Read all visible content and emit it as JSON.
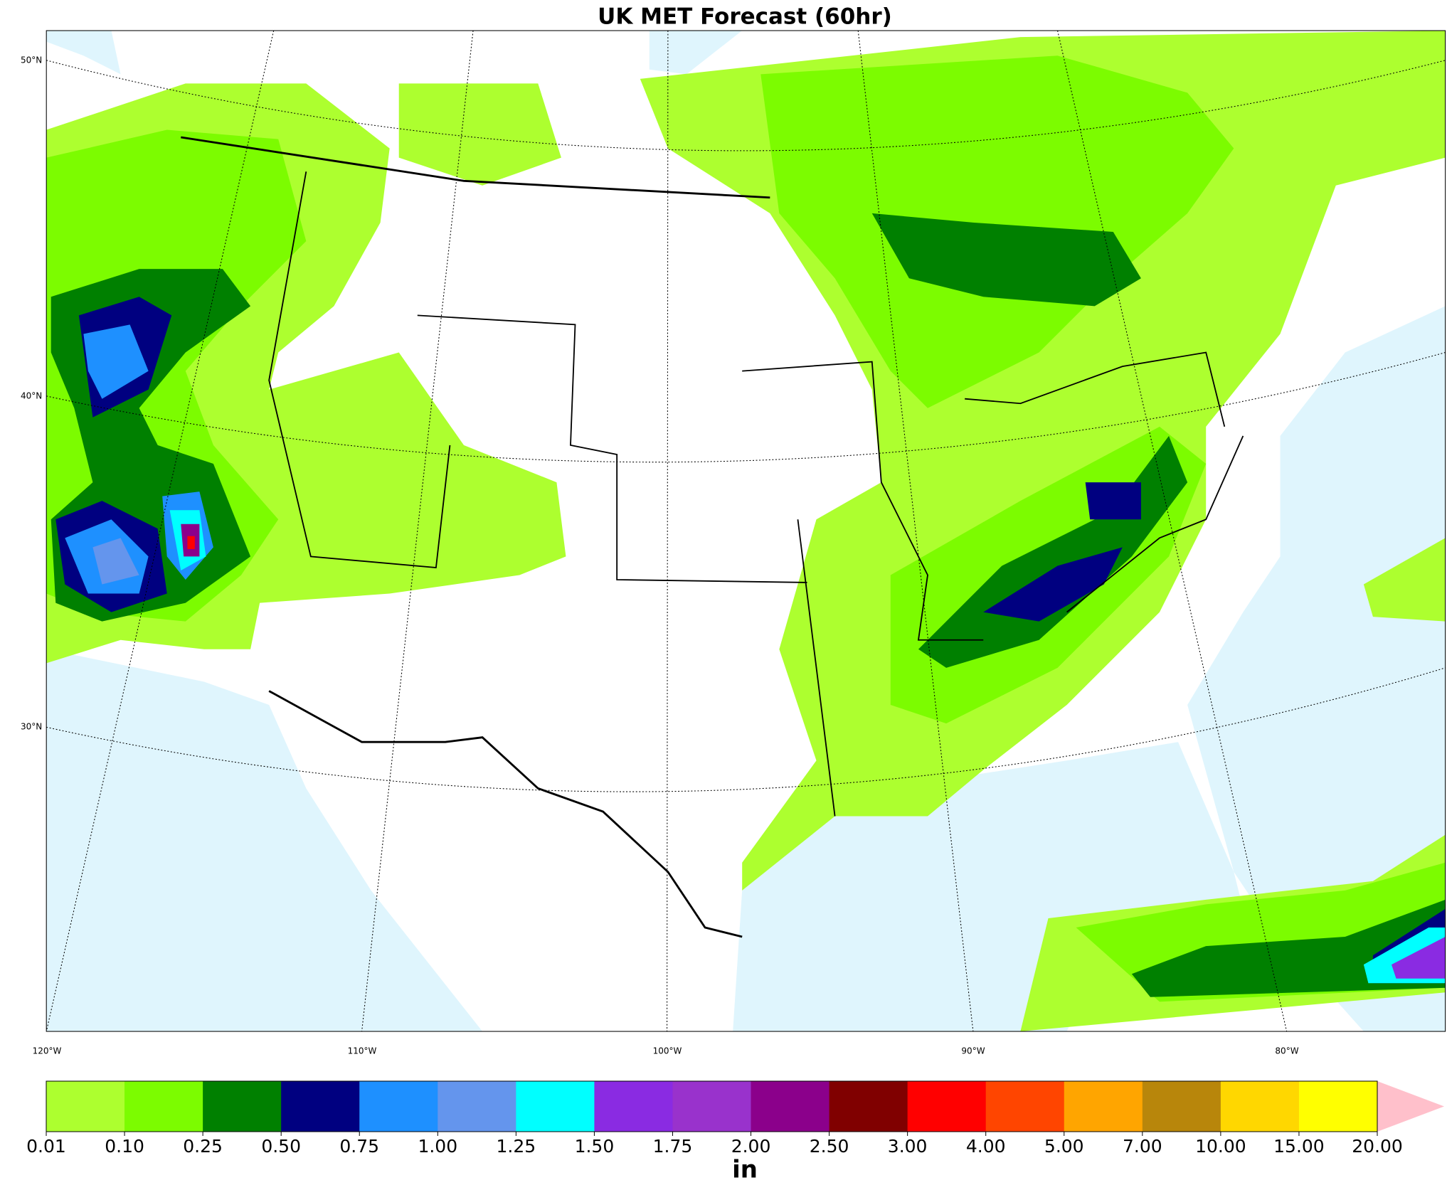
{
  "title": "UK MET Forecast (60hr)",
  "lat_labels": [
    "50°N",
    "40°N",
    "30°N"
  ],
  "lon_labels": [
    "120°W",
    "110°W",
    "100°W",
    "90°W",
    "80°W"
  ],
  "colorbar": {
    "ticks": [
      "0.01",
      "0.10",
      "0.25",
      "0.50",
      "0.75",
      "1.00",
      "1.25",
      "1.50",
      "1.75",
      "2.00",
      "2.50",
      "3.00",
      "4.00",
      "5.00",
      "7.00",
      "10.00",
      "15.00",
      "20.00"
    ],
    "colors": [
      "#adff2f",
      "#7cfc00",
      "#008000",
      "#000080",
      "#1e90ff",
      "#6495ed",
      "#00ffff",
      "#8a2be2",
      "#9932cc",
      "#8b008b",
      "#800000",
      "#ff0000",
      "#ff4500",
      "#ffa500",
      "#b8860b",
      "#ffd700",
      "#ffff00",
      "#ffc0cb"
    ],
    "unit": "in"
  }
}
